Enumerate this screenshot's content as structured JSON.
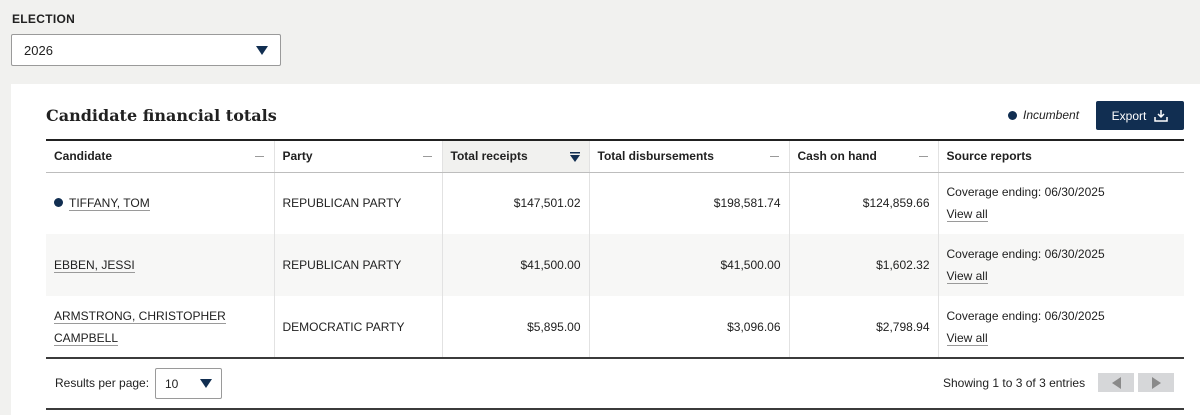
{
  "election": {
    "label": "ELECTION",
    "selected": "2026"
  },
  "panel": {
    "title": "Candidate financial totals",
    "incumbent_label": "Incumbent",
    "export_label": "Export"
  },
  "table": {
    "columns": [
      "Candidate",
      "Party",
      "Total receipts",
      "Total disbursements",
      "Cash on hand",
      "Source reports"
    ],
    "rows": [
      {
        "candidate": "TIFFANY, TOM",
        "incumbent": true,
        "party": "REPUBLICAN PARTY",
        "receipts": "$147,501.02",
        "disbursements": "$198,581.74",
        "cash": "$124,859.66",
        "coverage": "Coverage ending: 06/30/2025",
        "view_all": "View all"
      },
      {
        "candidate": "EBBEN, JESSI",
        "incumbent": false,
        "party": "REPUBLICAN PARTY",
        "receipts": "$41,500.00",
        "disbursements": "$41,500.00",
        "cash": "$1,602.32",
        "coverage": "Coverage ending: 06/30/2025",
        "view_all": "View all"
      },
      {
        "candidate_line1": "ARMSTRONG, CHRISTOPHER",
        "candidate_line2": "CAMPBELL",
        "incumbent": false,
        "party": "DEMOCRATIC PARTY",
        "receipts": "$5,895.00",
        "disbursements": "$3,096.06",
        "cash": "$2,798.94",
        "coverage": "Coverage ending: 06/30/2025",
        "view_all": "View all"
      }
    ]
  },
  "footer": {
    "results_per_page_label": "Results per page:",
    "results_per_page_value": "10",
    "showing": "Showing 1 to 3 of 3 entries"
  },
  "colors": {
    "accent": "#112e51",
    "background": "#f1f1ef"
  }
}
